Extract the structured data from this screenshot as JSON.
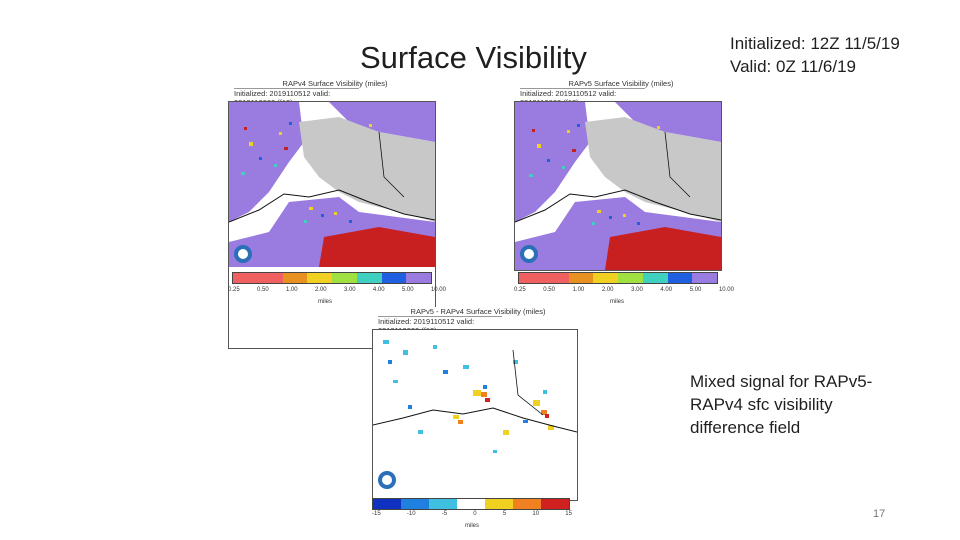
{
  "slide": {
    "title": "Surface Visibility",
    "init_line1": "Initialized: 12Z 11/5/19",
    "init_line2": "Valid: 0Z 11/6/19",
    "note": "Mixed signal for RAPv5-RAPv4 sfc visibility difference field",
    "page_number": "17"
  },
  "panels": {
    "rapv4": {
      "title": "RAPv4 Surface Visibility (miles)",
      "subtitle": "Initialized: 2019110512 valid: 2019110600 (f12)",
      "ticks": [
        "0.25",
        "0.50",
        "1.00",
        "2.00",
        "3.00",
        "4.00",
        "5.00",
        "10.00"
      ],
      "units": "miles"
    },
    "rapv5": {
      "title": "RAPv5 Surface Visibility (miles)",
      "subtitle": "Initialized: 2019110512 valid: 2019110600 (f12)",
      "ticks": [
        "0.25",
        "0.50",
        "1.00",
        "2.00",
        "3.00",
        "4.00",
        "5.00",
        "10.00"
      ],
      "units": "miles"
    },
    "diff": {
      "title": "RAPv5 - RAPv4 Surface Visibility (miles)",
      "subtitle": "Initialized: 2019110512 valid: 2019110600 (f12)",
      "ticks": [
        "-15",
        "-10",
        "-5",
        "0",
        "5",
        "10",
        "15"
      ],
      "units": "miles"
    }
  },
  "colors": {
    "vis_scale": [
      "#f06060",
      "#e89020",
      "#f0d020",
      "#a0e040",
      "#40d0c0",
      "#2060e0",
      "#9a7be0"
    ],
    "diff_scale": [
      "#1030c0",
      "#2080e0",
      "#40c0e0",
      "#ffffff",
      "#f0d020",
      "#f08020",
      "#d02020"
    ],
    "land_gray": "#c8c8c8",
    "purple": "#9a7be0",
    "red_field": "#c82020"
  }
}
